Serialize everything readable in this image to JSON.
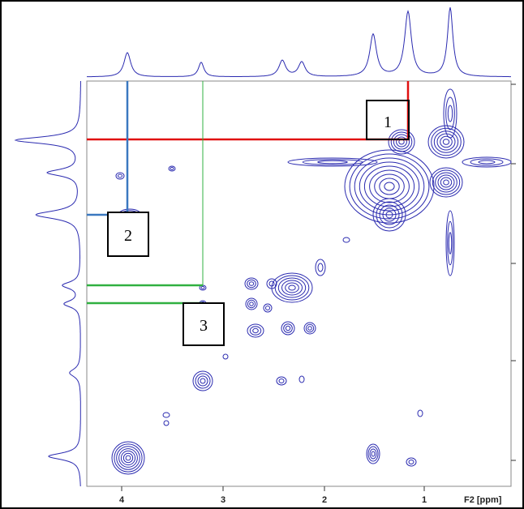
{
  "axis": {
    "ticks": [
      "4",
      "3",
      "2",
      "1"
    ],
    "label": "F2 [ppm]"
  },
  "boxes": [
    "1",
    "2",
    "3"
  ]
}
